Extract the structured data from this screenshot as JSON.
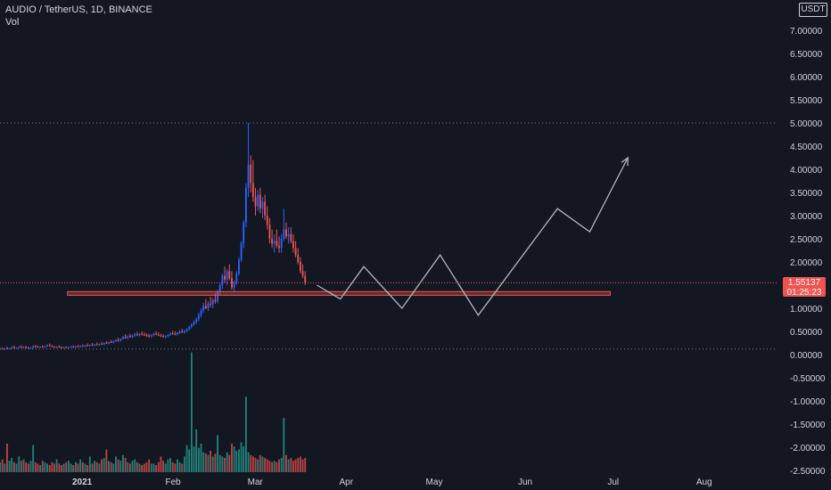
{
  "header": {
    "symbol": "AUDIO / TetherUS, 1D, BINANCE",
    "vol_label": "Vol",
    "currency": "USDT"
  },
  "price_tag": {
    "price": "1.55137",
    "countdown": "01:25:23"
  },
  "colors": {
    "bg": "#131722",
    "up": "#2962ff",
    "down": "#ef5350",
    "vol_up": "#26a69a",
    "vol_down": "#ef5350",
    "text": "#d1d4dc",
    "zone": "#ef5350",
    "projection": "#b2b5be"
  },
  "chart_data": {
    "type": "candlestick",
    "y_axis": {
      "ticks": [
        7.0,
        6.5,
        6.0,
        5.5,
        5.0,
        4.5,
        4.0,
        3.5,
        3.0,
        2.5,
        2.0,
        1.5,
        1.0,
        0.5,
        0.0,
        -0.5,
        -1.0,
        -1.5,
        -2.0,
        -2.5
      ],
      "tick_labels": [
        "7.00000",
        "6.50000",
        "6.00000",
        "5.50000",
        "5.00000",
        "4.50000",
        "4.00000",
        "3.50000",
        "3.00000",
        "2.50000",
        "2.00000",
        "1.50000",
        "1.00000",
        "0.50000",
        "0.00000",
        "-0.50000",
        "-1.00000",
        "-1.50000",
        "-2.00000",
        "-2.50000"
      ],
      "range": [
        -2.6,
        7.3
      ]
    },
    "x_axis": {
      "labels": [
        "2021",
        "Feb",
        "Mar",
        "Apr",
        "May",
        "Jun",
        "Jul",
        "Aug"
      ],
      "label_days": [
        0,
        31,
        59,
        90,
        120,
        151,
        181,
        212
      ],
      "range_days": [
        -28,
        237
      ]
    },
    "dotted_levels": [
      5.0,
      0.12
    ],
    "current_price": 1.55137,
    "support_zone": {
      "from_day": -5,
      "to_day": 180,
      "low": 1.28,
      "high": 1.36
    },
    "projection_path": [
      {
        "day": 80,
        "price": 1.5
      },
      {
        "day": 88,
        "price": 1.2
      },
      {
        "day": 96,
        "price": 1.9
      },
      {
        "day": 109,
        "price": 1.0
      },
      {
        "day": 122,
        "price": 2.15
      },
      {
        "day": 135,
        "price": 0.85
      },
      {
        "day": 162,
        "price": 3.15
      },
      {
        "day": 173,
        "price": 2.65
      },
      {
        "day": 186,
        "price": 4.25
      }
    ],
    "candles": [
      [
        0.12,
        0.16,
        0.1,
        0.13
      ],
      [
        0.13,
        0.15,
        0.11,
        0.12
      ],
      [
        0.12,
        0.14,
        0.1,
        0.14
      ],
      [
        0.14,
        0.17,
        0.12,
        0.13
      ],
      [
        0.13,
        0.15,
        0.11,
        0.14
      ],
      [
        0.14,
        0.18,
        0.12,
        0.16
      ],
      [
        0.16,
        0.19,
        0.13,
        0.14
      ],
      [
        0.14,
        0.16,
        0.12,
        0.15
      ],
      [
        0.15,
        0.19,
        0.13,
        0.17
      ],
      [
        0.17,
        0.2,
        0.14,
        0.15
      ],
      [
        0.15,
        0.18,
        0.13,
        0.16
      ],
      [
        0.16,
        0.19,
        0.14,
        0.15
      ],
      [
        0.15,
        0.17,
        0.13,
        0.14
      ],
      [
        0.14,
        0.16,
        0.12,
        0.15
      ],
      [
        0.15,
        0.2,
        0.13,
        0.18
      ],
      [
        0.18,
        0.21,
        0.15,
        0.17
      ],
      [
        0.17,
        0.19,
        0.15,
        0.16
      ],
      [
        0.16,
        0.18,
        0.14,
        0.17
      ],
      [
        0.17,
        0.2,
        0.15,
        0.16
      ],
      [
        0.16,
        0.19,
        0.14,
        0.18
      ],
      [
        0.18,
        0.22,
        0.16,
        0.2
      ],
      [
        0.2,
        0.24,
        0.17,
        0.18
      ],
      [
        0.18,
        0.21,
        0.16,
        0.17
      ],
      [
        0.17,
        0.19,
        0.15,
        0.16
      ],
      [
        0.16,
        0.18,
        0.14,
        0.17
      ],
      [
        0.17,
        0.2,
        0.15,
        0.16
      ],
      [
        0.16,
        0.18,
        0.14,
        0.15
      ],
      [
        0.15,
        0.17,
        0.13,
        0.16
      ],
      [
        0.16,
        0.18,
        0.14,
        0.15
      ],
      [
        0.15,
        0.17,
        0.13,
        0.16
      ],
      [
        0.16,
        0.19,
        0.14,
        0.17
      ],
      [
        0.17,
        0.2,
        0.15,
        0.16
      ],
      [
        0.16,
        0.19,
        0.14,
        0.18
      ],
      [
        0.18,
        0.21,
        0.16,
        0.17
      ],
      [
        0.17,
        0.2,
        0.15,
        0.19
      ],
      [
        0.19,
        0.22,
        0.17,
        0.18
      ],
      [
        0.18,
        0.21,
        0.16,
        0.2
      ],
      [
        0.2,
        0.24,
        0.18,
        0.19
      ],
      [
        0.19,
        0.22,
        0.17,
        0.21
      ],
      [
        0.21,
        0.25,
        0.19,
        0.2
      ],
      [
        0.2,
        0.23,
        0.18,
        0.22
      ],
      [
        0.22,
        0.26,
        0.2,
        0.21
      ],
      [
        0.21,
        0.24,
        0.19,
        0.23
      ],
      [
        0.23,
        0.27,
        0.21,
        0.22
      ],
      [
        0.22,
        0.26,
        0.2,
        0.25
      ],
      [
        0.25,
        0.29,
        0.23,
        0.24
      ],
      [
        0.24,
        0.28,
        0.22,
        0.27
      ],
      [
        0.27,
        0.31,
        0.25,
        0.26
      ],
      [
        0.26,
        0.3,
        0.24,
        0.29
      ],
      [
        0.29,
        0.34,
        0.27,
        0.31
      ],
      [
        0.31,
        0.36,
        0.28,
        0.3
      ],
      [
        0.3,
        0.35,
        0.28,
        0.34
      ],
      [
        0.34,
        0.4,
        0.32,
        0.38
      ],
      [
        0.38,
        0.44,
        0.34,
        0.36
      ],
      [
        0.36,
        0.42,
        0.33,
        0.4
      ],
      [
        0.4,
        0.45,
        0.36,
        0.38
      ],
      [
        0.38,
        0.43,
        0.35,
        0.41
      ],
      [
        0.41,
        0.47,
        0.38,
        0.44
      ],
      [
        0.44,
        0.49,
        0.4,
        0.42
      ],
      [
        0.42,
        0.47,
        0.39,
        0.45
      ],
      [
        0.45,
        0.5,
        0.41,
        0.43
      ],
      [
        0.43,
        0.48,
        0.4,
        0.42
      ],
      [
        0.42,
        0.46,
        0.38,
        0.41
      ],
      [
        0.41,
        0.45,
        0.37,
        0.4
      ],
      [
        0.4,
        0.44,
        0.36,
        0.42
      ],
      [
        0.42,
        0.47,
        0.39,
        0.45
      ],
      [
        0.45,
        0.5,
        0.42,
        0.43
      ],
      [
        0.43,
        0.48,
        0.4,
        0.41
      ],
      [
        0.41,
        0.45,
        0.38,
        0.4
      ],
      [
        0.4,
        0.44,
        0.37,
        0.38
      ],
      [
        0.38,
        0.42,
        0.35,
        0.4
      ],
      [
        0.4,
        0.44,
        0.37,
        0.43
      ],
      [
        0.43,
        0.48,
        0.4,
        0.46
      ],
      [
        0.46,
        0.51,
        0.43,
        0.45
      ],
      [
        0.45,
        0.5,
        0.42,
        0.44
      ],
      [
        0.44,
        0.49,
        0.41,
        0.47
      ],
      [
        0.47,
        0.53,
        0.44,
        0.5
      ],
      [
        0.5,
        0.56,
        0.47,
        0.48
      ],
      [
        0.48,
        0.53,
        0.45,
        0.51
      ],
      [
        0.51,
        0.57,
        0.48,
        0.55
      ],
      [
        0.55,
        0.62,
        0.52,
        0.6
      ],
      [
        0.6,
        0.68,
        0.56,
        0.65
      ],
      [
        0.65,
        0.74,
        0.62,
        0.7
      ],
      [
        0.7,
        0.8,
        0.66,
        0.76
      ],
      [
        0.76,
        0.9,
        0.72,
        0.85
      ],
      [
        0.85,
        1.0,
        0.8,
        0.95
      ],
      [
        0.95,
        1.12,
        0.9,
        1.05
      ],
      [
        1.05,
        1.2,
        0.98,
        1.0
      ],
      [
        1.0,
        1.15,
        0.94,
        1.1
      ],
      [
        1.1,
        1.25,
        1.02,
        1.08
      ],
      [
        1.08,
        1.22,
        1.0,
        1.18
      ],
      [
        1.18,
        1.32,
        1.1,
        1.15
      ],
      [
        1.15,
        1.4,
        1.1,
        1.35
      ],
      [
        1.35,
        1.55,
        1.28,
        1.5
      ],
      [
        1.5,
        1.75,
        1.42,
        1.7
      ],
      [
        1.7,
        1.9,
        1.55,
        1.62
      ],
      [
        1.62,
        1.85,
        1.5,
        1.8
      ],
      [
        1.8,
        1.95,
        1.6,
        1.65
      ],
      [
        1.65,
        1.8,
        1.4,
        1.45
      ],
      [
        1.45,
        1.6,
        1.35,
        1.55
      ],
      [
        1.55,
        1.8,
        1.5,
        1.75
      ],
      [
        1.75,
        2.1,
        1.7,
        2.05
      ],
      [
        2.05,
        2.45,
        2.0,
        2.4
      ],
      [
        2.4,
        2.9,
        2.3,
        2.85
      ],
      [
        2.85,
        3.7,
        2.75,
        3.6
      ],
      [
        3.6,
        5.0,
        3.4,
        4.1
      ],
      [
        4.1,
        4.3,
        3.5,
        3.7
      ],
      [
        3.7,
        4.2,
        3.3,
        3.4
      ],
      [
        3.4,
        3.6,
        3.0,
        3.2
      ],
      [
        3.2,
        3.55,
        3.1,
        3.45
      ],
      [
        3.45,
        3.6,
        3.05,
        3.15
      ],
      [
        3.15,
        3.4,
        2.95,
        3.3
      ],
      [
        3.3,
        3.45,
        2.9,
        3.0
      ],
      [
        3.0,
        3.2,
        2.7,
        2.8
      ],
      [
        2.8,
        2.95,
        2.4,
        2.5
      ],
      [
        2.5,
        2.7,
        2.3,
        2.4
      ],
      [
        2.4,
        2.6,
        2.2,
        2.45
      ],
      [
        2.45,
        2.7,
        2.3,
        2.35
      ],
      [
        2.35,
        2.55,
        2.2,
        2.3
      ],
      [
        2.3,
        2.6,
        2.2,
        2.5
      ],
      [
        2.5,
        3.15,
        2.45,
        2.7
      ],
      [
        2.7,
        2.85,
        2.5,
        2.55
      ],
      [
        2.55,
        2.75,
        2.4,
        2.6
      ],
      [
        2.6,
        2.75,
        2.4,
        2.45
      ],
      [
        2.45,
        2.6,
        2.2,
        2.3
      ],
      [
        2.3,
        2.45,
        2.1,
        2.15
      ],
      [
        2.15,
        2.3,
        1.95,
        2.0
      ],
      [
        2.0,
        2.1,
        1.75,
        1.8
      ],
      [
        1.8,
        1.95,
        1.65,
        1.7
      ],
      [
        1.7,
        1.8,
        1.5,
        1.55
      ]
    ],
    "volumes": [
      0.35,
      0.45,
      0.3,
      1.0,
      0.4,
      0.5,
      0.35,
      0.3,
      0.55,
      0.4,
      0.45,
      0.35,
      0.3,
      0.4,
      0.95,
      0.35,
      0.3,
      0.25,
      0.4,
      0.35,
      0.3,
      0.25,
      0.35,
      0.3,
      0.45,
      0.3,
      0.25,
      0.3,
      0.35,
      0.4,
      0.3,
      0.25,
      0.35,
      0.3,
      0.45,
      0.35,
      0.3,
      0.25,
      0.55,
      0.3,
      0.4,
      0.35,
      0.3,
      0.45,
      0.5,
      0.8,
      0.4,
      0.35,
      0.3,
      0.55,
      0.45,
      0.4,
      0.6,
      0.5,
      0.35,
      0.3,
      0.4,
      0.45,
      0.35,
      0.3,
      0.25,
      0.3,
      0.35,
      0.45,
      0.3,
      0.3,
      0.25,
      0.35,
      0.55,
      0.4,
      0.3,
      0.45,
      0.5,
      0.35,
      0.3,
      0.45,
      0.35,
      0.3,
      0.55,
      0.95,
      0.8,
      4.2,
      0.9,
      1.5,
      0.85,
      1.0,
      0.7,
      0.65,
      0.6,
      0.75,
      0.55,
      0.65,
      1.3,
      0.6,
      0.55,
      0.5,
      0.7,
      0.6,
      1.0,
      0.9,
      0.75,
      0.8,
      1.05,
      0.9,
      2.65,
      0.7,
      0.6,
      0.55,
      0.5,
      0.45,
      0.6,
      0.55,
      0.5,
      0.45,
      0.4,
      0.35,
      0.4,
      0.35,
      0.45,
      0.5,
      1.9,
      0.6,
      0.45,
      0.5,
      0.4,
      0.45,
      0.5,
      0.55,
      0.45,
      0.5
    ]
  }
}
